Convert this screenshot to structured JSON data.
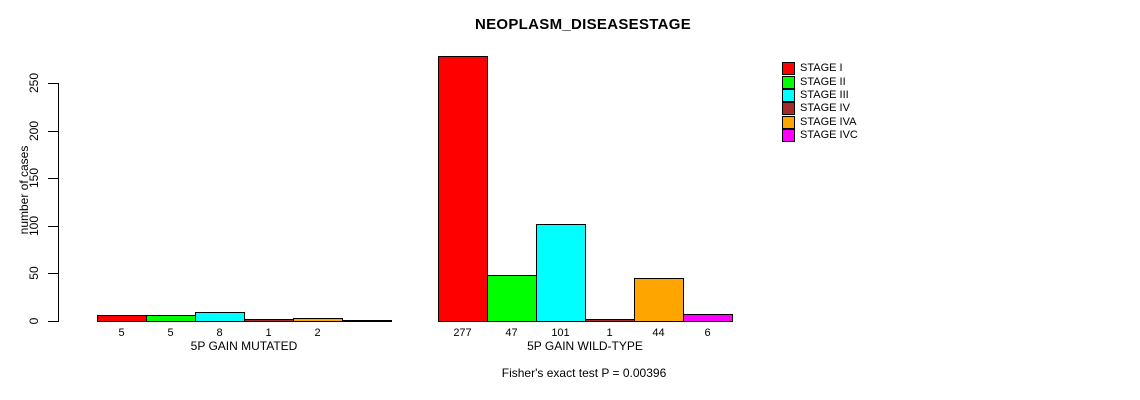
{
  "chart_data": {
    "type": "bar",
    "title": "NEOPLASM_DISEASESTAGE",
    "ylabel": "number of cases",
    "xlabel": "",
    "yticks": [
      0,
      50,
      100,
      150,
      200,
      250
    ],
    "ylim": [
      0,
      290
    ],
    "grid": false,
    "legend_position": "right",
    "series": [
      {
        "name": "STAGE I",
        "color": "#FF0000"
      },
      {
        "name": "STAGE II",
        "color": "#00FF00"
      },
      {
        "name": "STAGE III",
        "color": "#00FFFF"
      },
      {
        "name": "STAGE IV",
        "color": "#A52A2A"
      },
      {
        "name": "STAGE IVA",
        "color": "#FFA500"
      },
      {
        "name": "STAGE IVC",
        "color": "#FF00FF"
      }
    ],
    "groups": [
      {
        "label": "5P GAIN MUTATED",
        "values": [
          5,
          5,
          8,
          1,
          2,
          0
        ]
      },
      {
        "label": "5P GAIN WILD-TYPE",
        "values": [
          277,
          47,
          101,
          1,
          44,
          6
        ]
      }
    ],
    "annotation": "Fisher's exact test P = 0.00396"
  }
}
